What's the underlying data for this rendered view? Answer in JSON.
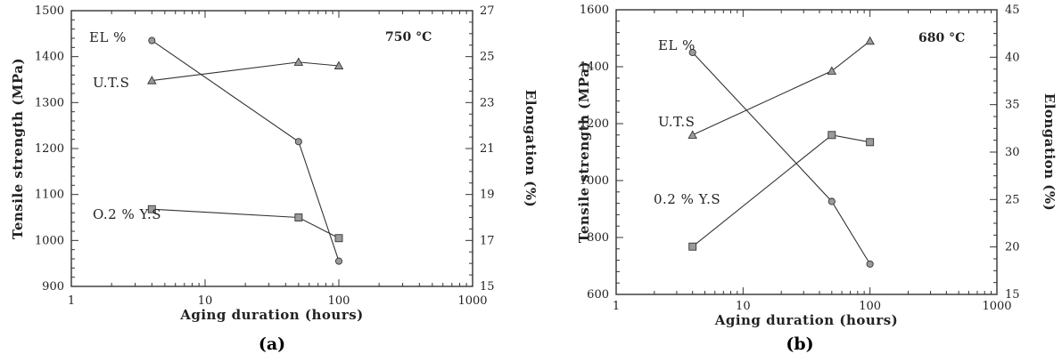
{
  "chart_data": [
    {
      "type": "line",
      "caption": "(a)",
      "temperature_label": "750 °C",
      "xlabel": "Aging duration (hours)",
      "ylabel_left": "Tensile strength (MPa)",
      "ylabel_right": "Elongation (%)",
      "x_scale": "log",
      "xlim": [
        1,
        1000
      ],
      "ylim_left": [
        900,
        1500
      ],
      "ylim_right": [
        15,
        27
      ],
      "x_ticks": [
        1,
        10,
        100,
        1000
      ],
      "y_ticks_left": [
        900,
        1000,
        1100,
        1200,
        1300,
        1400,
        1500
      ],
      "y_ticks_right": [
        15,
        17,
        19,
        21,
        23,
        25,
        27
      ],
      "grid": false,
      "series": [
        {
          "name": "EL %",
          "axis": "right",
          "marker": "circle",
          "x": [
            4,
            50,
            100
          ],
          "values": [
            25.7,
            21.3,
            16.1
          ]
        },
        {
          "name": "U.T.S",
          "axis": "left",
          "marker": "triangle",
          "x": [
            4,
            50,
            100
          ],
          "values": [
            1348,
            1388,
            1380
          ]
        },
        {
          "name": "O.2 % Y.S",
          "axis": "left",
          "marker": "square",
          "x": [
            4,
            50,
            100
          ],
          "values": [
            1068,
            1050,
            1005
          ]
        }
      ]
    },
    {
      "type": "line",
      "caption": "(b)",
      "temperature_label": "680 °C",
      "xlabel": "Aging duration (hours)",
      "ylabel_left": "Tensile strength (MPa)",
      "ylabel_right": "Elongation (%)",
      "x_scale": "log",
      "xlim": [
        1,
        1000
      ],
      "ylim_left": [
        600,
        1600
      ],
      "ylim_right": [
        15,
        45
      ],
      "x_ticks": [
        1,
        10,
        100,
        1000
      ],
      "y_ticks_left": [
        600,
        800,
        1000,
        1200,
        1400,
        1600
      ],
      "y_ticks_right": [
        15,
        20,
        25,
        30,
        35,
        40,
        45
      ],
      "grid": false,
      "series": [
        {
          "name": "EL %",
          "axis": "right",
          "marker": "circle",
          "x": [
            4,
            50,
            100
          ],
          "values": [
            40.5,
            24.8,
            18.2
          ]
        },
        {
          "name": "U.T.S",
          "axis": "left",
          "marker": "triangle",
          "x": [
            4,
            50,
            100
          ],
          "values": [
            1160,
            1385,
            1490
          ]
        },
        {
          "name": "0.2 % Y.S",
          "axis": "left",
          "marker": "square",
          "x": [
            4,
            50,
            100
          ],
          "values": [
            768,
            1160,
            1135
          ]
        }
      ]
    }
  ]
}
